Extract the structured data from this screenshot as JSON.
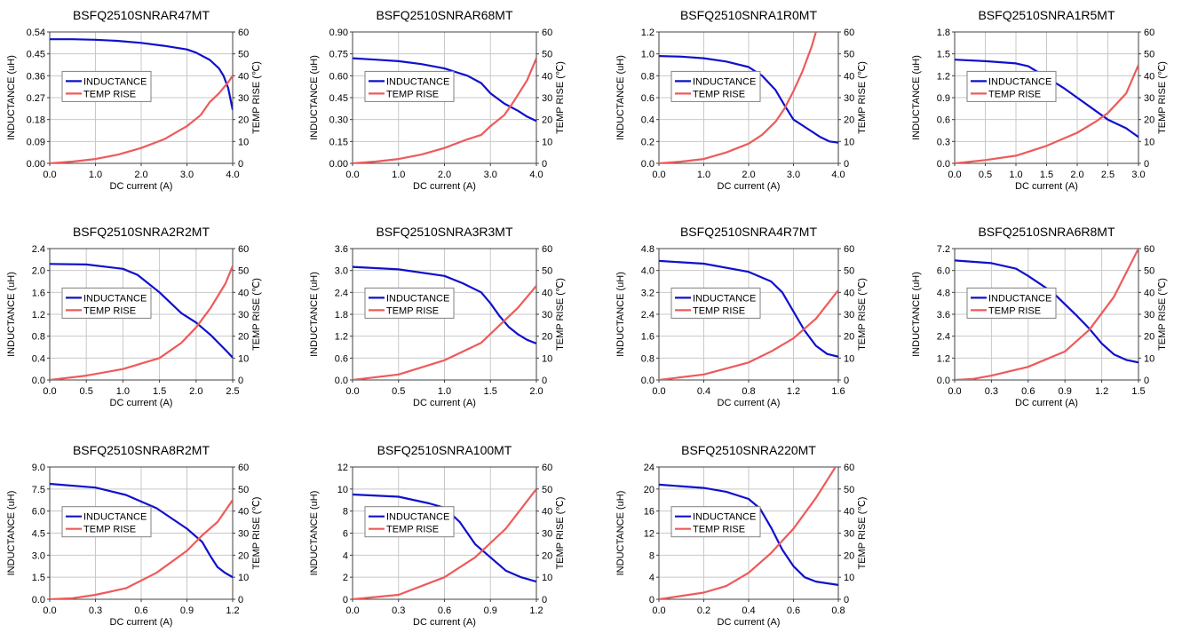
{
  "colors": {
    "inductance": "#1010cc",
    "temp_rise": "#ee5a5a",
    "grid": "#c8c8c8",
    "axis": "#404040"
  },
  "chart_data": [
    {
      "type": "line",
      "title": "BSFQ2510SNRAR47MT",
      "xlabel": "DC current (A)",
      "ylabel": "INDUCTANCE (uH)",
      "y2label": "TEMP RISE (℃)",
      "xlim": [
        0,
        4.0
      ],
      "ylim": [
        0,
        0.54
      ],
      "y2lim": [
        0,
        60
      ],
      "xticks": [
        "0.0",
        "1.0",
        "2.0",
        "3.0",
        "4.0"
      ],
      "yticks": [
        "0.00",
        "0.09",
        "0.18",
        "0.27",
        "0.36",
        "0.45",
        "0.54"
      ],
      "y2ticks": [
        "0",
        "10",
        "20",
        "30",
        "40",
        "50",
        "60"
      ],
      "legend": "center-left",
      "grid": true,
      "series": [
        {
          "name": "INDUCTANCE",
          "axis": "left",
          "x": [
            0,
            0.5,
            1.0,
            1.5,
            2.0,
            2.5,
            3.0,
            3.2,
            3.5,
            3.7,
            3.8,
            3.9,
            4.0
          ],
          "y": [
            0.51,
            0.51,
            0.508,
            0.503,
            0.495,
            0.483,
            0.468,
            0.455,
            0.425,
            0.39,
            0.36,
            0.31,
            0.22
          ]
        },
        {
          "name": "TEMP RISE",
          "axis": "right",
          "x": [
            0,
            0.5,
            1.0,
            1.5,
            2.0,
            2.5,
            3.0,
            3.3,
            3.5,
            3.7,
            3.9,
            4.0
          ],
          "y": [
            0,
            0.8,
            2,
            4,
            7,
            11,
            17,
            22,
            28,
            32,
            37,
            40
          ]
        }
      ]
    },
    {
      "type": "line",
      "title": "BSFQ2510SNRAR68MT",
      "xlabel": "DC current (A)",
      "ylabel": "INDUCTANCE (uH)",
      "y2label": "TEMP RISE (℃)",
      "xlim": [
        0,
        4.0
      ],
      "ylim": [
        0,
        0.9
      ],
      "y2lim": [
        0,
        60
      ],
      "xticks": [
        "0.0",
        "1.0",
        "2.0",
        "3.0",
        "4.0"
      ],
      "yticks": [
        "0.00",
        "0.15",
        "0.30",
        "0.45",
        "0.60",
        "0.75",
        "0.90"
      ],
      "y2ticks": [
        "0",
        "10",
        "20",
        "30",
        "40",
        "50",
        "60"
      ],
      "legend": "center-left",
      "grid": true,
      "series": [
        {
          "name": "INDUCTANCE",
          "axis": "left",
          "x": [
            0,
            0.5,
            1.0,
            1.5,
            2.0,
            2.5,
            2.8,
            3.0,
            3.3,
            3.6,
            3.8,
            4.0
          ],
          "y": [
            0.72,
            0.71,
            0.7,
            0.68,
            0.65,
            0.6,
            0.55,
            0.48,
            0.41,
            0.36,
            0.32,
            0.29
          ]
        },
        {
          "name": "TEMP RISE",
          "axis": "right",
          "x": [
            0,
            0.5,
            1.0,
            1.5,
            2.0,
            2.5,
            2.8,
            3.0,
            3.3,
            3.5,
            3.8,
            4.0
          ],
          "y": [
            0,
            0.8,
            2,
            4,
            7,
            11,
            13,
            17,
            22,
            28,
            38,
            48
          ]
        }
      ]
    },
    {
      "type": "line",
      "title": "BSFQ2510SNRA1R0MT",
      "xlabel": "DC current (A)",
      "ylabel": "INDUCTANCE (uH)",
      "y2label": "TEMP RISE (℃)",
      "xlim": [
        0,
        4.0
      ],
      "ylim": [
        0,
        1.2
      ],
      "y2lim": [
        0,
        60
      ],
      "xticks": [
        "0.0",
        "1.0",
        "2.0",
        "3.0",
        "4.0"
      ],
      "yticks": [
        "0.0",
        "0.2",
        "0.4",
        "0.6",
        "0.8",
        "1.0",
        "1.2"
      ],
      "y2ticks": [
        "0",
        "10",
        "20",
        "30",
        "40",
        "50",
        "60"
      ],
      "legend": "center-left",
      "grid": true,
      "series": [
        {
          "name": "INDUCTANCE",
          "axis": "left",
          "x": [
            0,
            0.5,
            1.0,
            1.5,
            2.0,
            2.3,
            2.6,
            2.8,
            3.0,
            3.3,
            3.6,
            3.8,
            4.0
          ],
          "y": [
            0.98,
            0.975,
            0.96,
            0.93,
            0.88,
            0.8,
            0.67,
            0.53,
            0.4,
            0.32,
            0.24,
            0.2,
            0.19
          ]
        },
        {
          "name": "TEMP RISE",
          "axis": "right",
          "x": [
            0,
            0.5,
            1.0,
            1.5,
            2.0,
            2.3,
            2.6,
            2.8,
            3.0,
            3.2,
            3.4,
            3.5
          ],
          "y": [
            0,
            0.8,
            2,
            5,
            9,
            13,
            19,
            25,
            33,
            42,
            53,
            60
          ]
        }
      ]
    },
    {
      "type": "line",
      "title": "BSFQ2510SNRA1R5MT",
      "xlabel": "DC current (A)",
      "ylabel": "INDUCTANCE (uH)",
      "y2label": "TEMP RISE (℃)",
      "xlim": [
        0,
        3.0
      ],
      "ylim": [
        0,
        1.8
      ],
      "y2lim": [
        0,
        60
      ],
      "xticks": [
        "0.0",
        "0.5",
        "1.0",
        "1.5",
        "2.0",
        "2.5",
        "3.0"
      ],
      "yticks": [
        "0.0",
        "0.3",
        "0.6",
        "0.9",
        "1.2",
        "1.5",
        "1.8"
      ],
      "y2ticks": [
        "0",
        "10",
        "20",
        "30",
        "40",
        "50",
        "60"
      ],
      "legend": "center-left",
      "grid": true,
      "series": [
        {
          "name": "INDUCTANCE",
          "axis": "left",
          "x": [
            0,
            0.5,
            1.0,
            1.2,
            1.5,
            1.8,
            2.0,
            2.3,
            2.5,
            2.8,
            3.0
          ],
          "y": [
            1.42,
            1.4,
            1.37,
            1.33,
            1.18,
            1.02,
            0.9,
            0.72,
            0.6,
            0.48,
            0.36
          ]
        },
        {
          "name": "TEMP RISE",
          "axis": "right",
          "x": [
            0,
            0.5,
            1.0,
            1.5,
            2.0,
            2.3,
            2.5,
            2.8,
            3.0
          ],
          "y": [
            0,
            1.5,
            3.5,
            8,
            14,
            19,
            23,
            32,
            45
          ]
        }
      ]
    },
    {
      "type": "line",
      "title": "BSFQ2510SNRA2R2MT",
      "xlabel": "DC current (A)",
      "ylabel": "INDUCTANCE (uH)",
      "y2label": "TEMP RISE (℃)",
      "xlim": [
        0,
        2.5
      ],
      "ylim": [
        0,
        2.4
      ],
      "y2lim": [
        0,
        60
      ],
      "xticks": [
        "0.0",
        "0.5",
        "1.0",
        "1.5",
        "2.0",
        "2.5"
      ],
      "yticks": [
        "0.0",
        "0.4",
        "0.8",
        "1.2",
        "1.6",
        "2.0",
        "2.4"
      ],
      "y2ticks": [
        "0",
        "10",
        "20",
        "30",
        "40",
        "50",
        "60"
      ],
      "legend": "center-left",
      "grid": true,
      "series": [
        {
          "name": "INDUCTANCE",
          "axis": "left",
          "x": [
            0,
            0.5,
            1.0,
            1.2,
            1.5,
            1.8,
            2.0,
            2.2,
            2.4,
            2.5
          ],
          "y": [
            2.12,
            2.11,
            2.03,
            1.92,
            1.6,
            1.22,
            1.05,
            0.82,
            0.55,
            0.41
          ]
        },
        {
          "name": "TEMP RISE",
          "axis": "right",
          "x": [
            0,
            0.5,
            1.0,
            1.5,
            1.8,
            2.0,
            2.2,
            2.4,
            2.5
          ],
          "y": [
            0,
            2,
            5,
            10,
            17,
            24,
            33,
            44,
            52
          ]
        }
      ]
    },
    {
      "type": "line",
      "title": "BSFQ2510SNRA3R3MT",
      "xlabel": "DC current (A)",
      "ylabel": "INDUCTANCE (uH)",
      "y2label": "TEMP RISE (℃)",
      "xlim": [
        0,
        2.0
      ],
      "ylim": [
        0,
        3.6
      ],
      "y2lim": [
        0,
        60
      ],
      "xticks": [
        "0.0",
        "0.5",
        "1.0",
        "1.5",
        "2.0"
      ],
      "yticks": [
        "0.0",
        "0.6",
        "1.2",
        "1.8",
        "2.4",
        "3.0",
        "3.6"
      ],
      "y2ticks": [
        "0",
        "10",
        "20",
        "30",
        "40",
        "50",
        "60"
      ],
      "legend": "center-left",
      "grid": true,
      "series": [
        {
          "name": "INDUCTANCE",
          "axis": "left",
          "x": [
            0,
            0.5,
            1.0,
            1.2,
            1.4,
            1.5,
            1.6,
            1.7,
            1.8,
            1.9,
            2.0
          ],
          "y": [
            3.1,
            3.03,
            2.85,
            2.65,
            2.4,
            2.1,
            1.75,
            1.45,
            1.25,
            1.1,
            1.0
          ]
        },
        {
          "name": "TEMP RISE",
          "axis": "right",
          "x": [
            0,
            0.5,
            1.0,
            1.4,
            1.6,
            1.8,
            2.0
          ],
          "y": [
            0,
            2.5,
            9,
            17,
            25,
            33,
            43
          ]
        }
      ]
    },
    {
      "type": "line",
      "title": "BSFQ2510SNRA4R7MT",
      "xlabel": "DC current (A)",
      "ylabel": "INDUCTANCE (uH)",
      "y2label": "TEMP RISE (℃)",
      "xlim": [
        0,
        1.6
      ],
      "ylim": [
        0,
        4.8
      ],
      "y2lim": [
        0,
        60
      ],
      "xticks": [
        "0.0",
        "0.4",
        "0.8",
        "1.2",
        "1.6"
      ],
      "yticks": [
        "0.0",
        "0.8",
        "1.6",
        "2.4",
        "3.2",
        "4.0",
        "4.8"
      ],
      "y2ticks": [
        "0",
        "10",
        "20",
        "30",
        "40",
        "50",
        "60"
      ],
      "legend": "center-left",
      "grid": true,
      "series": [
        {
          "name": "INDUCTANCE",
          "axis": "left",
          "x": [
            0,
            0.4,
            0.8,
            1.0,
            1.1,
            1.2,
            1.3,
            1.4,
            1.5,
            1.6
          ],
          "y": [
            4.35,
            4.25,
            3.95,
            3.6,
            3.2,
            2.5,
            1.8,
            1.25,
            0.95,
            0.85
          ]
        },
        {
          "name": "TEMP RISE",
          "axis": "right",
          "x": [
            0,
            0.4,
            0.8,
            1.0,
            1.2,
            1.4,
            1.6
          ],
          "y": [
            0,
            2.5,
            8,
            13,
            19,
            28,
            41
          ]
        }
      ]
    },
    {
      "type": "line",
      "title": "BSFQ2510SNRA6R8MT",
      "xlabel": "DC current (A)",
      "ylabel": "INDUCTANCE (uH)",
      "y2label": "TEMP RISE (℃)",
      "xlim": [
        0,
        1.5
      ],
      "ylim": [
        0,
        7.2
      ],
      "y2lim": [
        0,
        60
      ],
      "xticks": [
        "0.0",
        "0.3",
        "0.6",
        "0.9",
        "1.2",
        "1.5"
      ],
      "yticks": [
        "0.0",
        "1.2",
        "2.4",
        "3.6",
        "4.8",
        "6.0",
        "7.2"
      ],
      "y2ticks": [
        "0",
        "10",
        "20",
        "30",
        "40",
        "50",
        "60"
      ],
      "legend": "center-left",
      "grid": true,
      "series": [
        {
          "name": "INDUCTANCE",
          "axis": "left",
          "x": [
            0,
            0.3,
            0.5,
            0.6,
            0.8,
            1.0,
            1.1,
            1.2,
            1.3,
            1.4,
            1.5
          ],
          "y": [
            6.55,
            6.4,
            6.1,
            5.7,
            4.8,
            3.5,
            2.8,
            2.0,
            1.4,
            1.1,
            0.96
          ]
        },
        {
          "name": "TEMP RISE",
          "axis": "right",
          "x": [
            0,
            0.15,
            0.3,
            0.6,
            0.9,
            1.1,
            1.3,
            1.5
          ],
          "y": [
            0,
            0.5,
            2,
            6,
            13,
            23,
            38,
            60
          ]
        }
      ]
    },
    {
      "type": "line",
      "title": "BSFQ2510SNRA8R2MT",
      "xlabel": "DC current (A)",
      "ylabel": "INDUCTANCE (uH)",
      "y2label": "TEMP RISE (℃)",
      "xlim": [
        0,
        1.2
      ],
      "ylim": [
        0,
        9.0
      ],
      "y2lim": [
        0,
        60
      ],
      "xticks": [
        "0.0",
        "0.3",
        "0.6",
        "0.9",
        "1.2"
      ],
      "yticks": [
        "0.0",
        "1.5",
        "3.0",
        "4.5",
        "6.0",
        "7.5",
        "9.0"
      ],
      "y2ticks": [
        "0",
        "10",
        "20",
        "30",
        "40",
        "50",
        "60"
      ],
      "legend": "center-left",
      "grid": true,
      "series": [
        {
          "name": "INDUCTANCE",
          "axis": "left",
          "x": [
            0,
            0.3,
            0.5,
            0.7,
            0.9,
            1.0,
            1.05,
            1.1,
            1.15,
            1.2
          ],
          "y": [
            7.85,
            7.6,
            7.1,
            6.2,
            4.8,
            3.9,
            3.0,
            2.2,
            1.8,
            1.5
          ]
        },
        {
          "name": "TEMP RISE",
          "axis": "right",
          "x": [
            0,
            0.15,
            0.3,
            0.5,
            0.7,
            0.9,
            1.0,
            1.1,
            1.2
          ],
          "y": [
            0,
            0.5,
            2,
            5,
            12,
            22,
            29,
            35,
            45
          ]
        }
      ]
    },
    {
      "type": "line",
      "title": "BSFQ2510SNRA100MT",
      "xlabel": "DC current (A)",
      "ylabel": "INDUCTANCE (uH)",
      "y2label": "TEMP RISE (℃)",
      "xlim": [
        0,
        1.2
      ],
      "ylim": [
        0,
        12
      ],
      "y2lim": [
        0,
        60
      ],
      "xticks": [
        "0.0",
        "0.3",
        "0.6",
        "0.9",
        "1.2"
      ],
      "yticks": [
        "0",
        "2",
        "4",
        "6",
        "8",
        "10",
        "12"
      ],
      "y2ticks": [
        "0",
        "10",
        "20",
        "30",
        "40",
        "50",
        "60"
      ],
      "legend": "center-left",
      "grid": true,
      "series": [
        {
          "name": "INDUCTANCE",
          "axis": "left",
          "x": [
            0,
            0.3,
            0.5,
            0.6,
            0.7,
            0.8,
            0.9,
            1.0,
            1.1,
            1.2
          ],
          "y": [
            9.5,
            9.3,
            8.7,
            8.3,
            7.0,
            5.0,
            3.8,
            2.6,
            2.0,
            1.6
          ]
        },
        {
          "name": "TEMP RISE",
          "axis": "right",
          "x": [
            0,
            0.3,
            0.6,
            0.8,
            1.0,
            1.2
          ],
          "y": [
            0,
            2,
            10,
            19,
            32,
            50
          ]
        }
      ]
    },
    {
      "type": "line",
      "title": "BSFQ2510SNRA220MT",
      "xlabel": "DC current (A)",
      "ylabel": "INDUCTANCE (uH)",
      "y2label": "TEMP RISE (℃)",
      "xlim": [
        0,
        0.8
      ],
      "ylim": [
        0,
        24
      ],
      "y2lim": [
        0,
        60
      ],
      "xticks": [
        "0.0",
        "0.2",
        "0.4",
        "0.6",
        "0.8"
      ],
      "yticks": [
        "0",
        "4",
        "8",
        "12",
        "16",
        "20",
        "24"
      ],
      "y2ticks": [
        "0",
        "10",
        "20",
        "30",
        "40",
        "50",
        "60"
      ],
      "legend": "center-left",
      "grid": true,
      "series": [
        {
          "name": "INDUCTANCE",
          "axis": "left",
          "x": [
            0,
            0.2,
            0.3,
            0.4,
            0.45,
            0.5,
            0.55,
            0.6,
            0.65,
            0.7,
            0.8
          ],
          "y": [
            20.8,
            20.2,
            19.5,
            18.2,
            16.5,
            13,
            9,
            6,
            4,
            3.2,
            2.6
          ]
        },
        {
          "name": "TEMP RISE",
          "axis": "right",
          "x": [
            0,
            0.2,
            0.3,
            0.4,
            0.5,
            0.6,
            0.7,
            0.8
          ],
          "y": [
            0,
            3,
            6,
            12,
            21,
            32,
            46,
            62
          ]
        }
      ]
    }
  ]
}
